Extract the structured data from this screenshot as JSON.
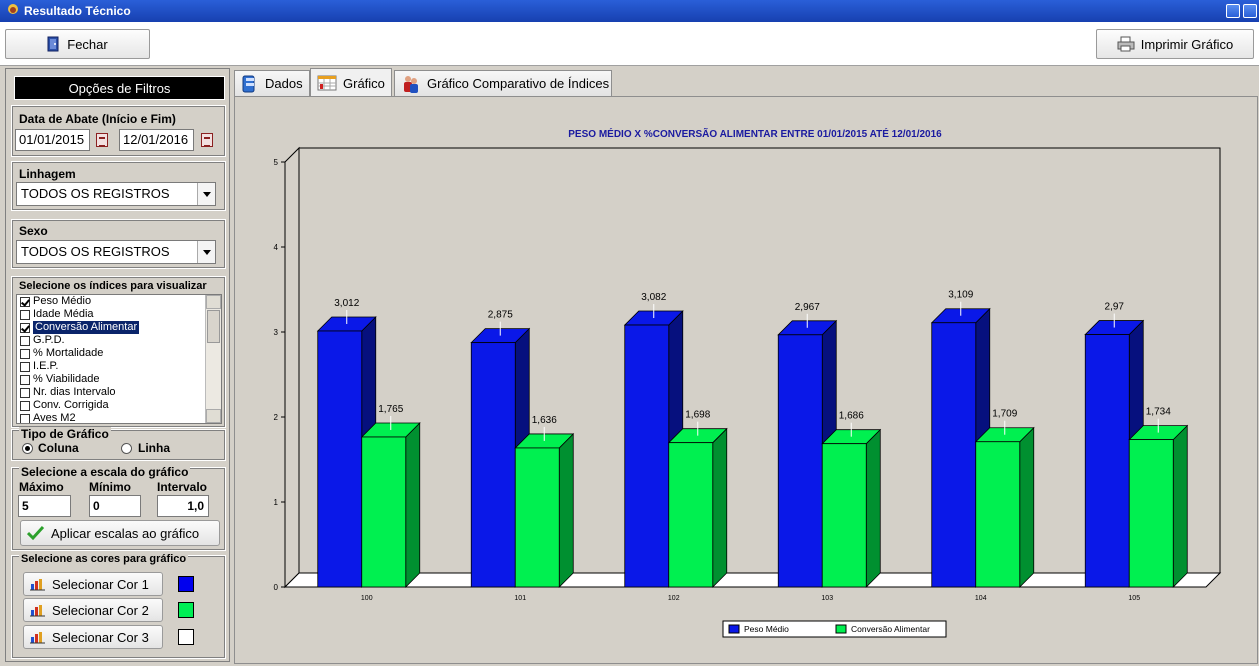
{
  "window": {
    "title": "Resultado Técnico"
  },
  "toolbar": {
    "close_label": "Fechar",
    "print_label": "Imprimir Gráfico"
  },
  "filters": {
    "title": "Opções de Filtros",
    "date_group_label": "Data de Abate (Início e Fim)",
    "date_start": "01/01/2015",
    "date_end": "12/01/2016",
    "lineage_label": "Linhagem",
    "lineage_value": "TODOS OS REGISTROS",
    "sex_label": "Sexo",
    "sex_value": "TODOS OS REGISTROS",
    "indices_label": "Selecione os índices para visualizar",
    "indices": [
      {
        "label": "Peso Médio",
        "checked": true,
        "selected": false
      },
      {
        "label": "Idade Média",
        "checked": false,
        "selected": false
      },
      {
        "label": "Conversão Alimentar",
        "checked": true,
        "selected": true
      },
      {
        "label": "G.P.D.",
        "checked": false,
        "selected": false
      },
      {
        "label": "% Mortalidade",
        "checked": false,
        "selected": false
      },
      {
        "label": "I.E.P.",
        "checked": false,
        "selected": false
      },
      {
        "label": "% Viabilidade",
        "checked": false,
        "selected": false
      },
      {
        "label": "Nr. dias Intervalo",
        "checked": false,
        "selected": false
      },
      {
        "label": "Conv. Corrigida",
        "checked": false,
        "selected": false
      },
      {
        "label": "Aves M2",
        "checked": false,
        "selected": false
      }
    ],
    "chart_type_label": "Tipo de Gráfico",
    "chart_type_column": "Coluna",
    "chart_type_line": "Linha",
    "chart_type_selected": "Coluna",
    "scale_label": "Selecione a escala do gráfico",
    "scale_max_label": "Máximo",
    "scale_min_label": "Mínimo",
    "scale_interval_label": "Intervalo",
    "scale_max": "5",
    "scale_min": "0",
    "scale_interval": "1,0",
    "apply_scale_label": "Aplicar escalas ao gráfico",
    "colors_label": "Selecione as cores para gráfico",
    "color_buttons": [
      {
        "label": "Selecionar Cor 1",
        "color": "#0000ee"
      },
      {
        "label": "Selecionar Cor 2",
        "color": "#00ee55"
      },
      {
        "label": "Selecionar Cor 3",
        "color": "#ffffff"
      }
    ]
  },
  "tabs": [
    {
      "label": "Dados",
      "active": false,
      "icon": "database-icon"
    },
    {
      "label": "Gráfico",
      "active": true,
      "icon": "chart-table-icon"
    },
    {
      "label": "Gráfico Comparativo de Índices",
      "active": false,
      "icon": "people-icon"
    }
  ],
  "colors": {
    "series1": "#0a18e8",
    "series1_dark": "#06107e",
    "series2": "#00f050",
    "series2_dark": "#009030",
    "title": "#1a1aa0",
    "titlebar": "#2a5fd8"
  },
  "chart_data": {
    "type": "bar",
    "title": "PESO MÉDIO X %CONVERSÃO ALIMENTAR  ENTRE 01/01/2015 ATÉ 12/01/2016",
    "categories": [
      "100",
      "101",
      "102",
      "103",
      "104",
      "105"
    ],
    "series": [
      {
        "name": "Peso Médio",
        "values": [
          3.012,
          2.875,
          3.082,
          2.967,
          3.109,
          2.97
        ],
        "labels": [
          "3,012",
          "2,875",
          "3,082",
          "2,967",
          "3,109",
          "2,97"
        ]
      },
      {
        "name": "Conversão Alimentar",
        "values": [
          1.765,
          1.636,
          1.698,
          1.686,
          1.709,
          1.734
        ],
        "labels": [
          "1,765",
          "1,636",
          "1,698",
          "1,686",
          "1,709",
          "1,734"
        ]
      }
    ],
    "ylim": [
      0,
      5
    ],
    "yticks": [
      "0",
      "1",
      "2",
      "3",
      "4",
      "5"
    ],
    "xlabel": "",
    "ylabel": "",
    "legend_position": "bottom-center",
    "three_d": true
  }
}
